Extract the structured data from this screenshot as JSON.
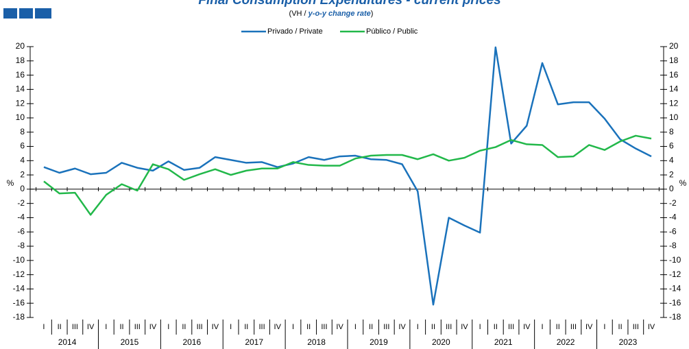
{
  "chart_data": {
    "type": "line",
    "title": "Final Consumption Expenditures - current prices",
    "subtitle_parts": [
      "(VH / ",
      "y-o-y change rate",
      ")"
    ],
    "y_axis_label": "%",
    "y2_axis_label": "%",
    "categories": [
      "I",
      "II",
      "III",
      "IV",
      "I",
      "II",
      "III",
      "IV",
      "I",
      "II",
      "III",
      "IV",
      "I",
      "II",
      "III",
      "IV",
      "I",
      "II",
      "III",
      "IV",
      "I",
      "II",
      "III",
      "IV",
      "I",
      "II",
      "III",
      "IV",
      "I",
      "II",
      "III",
      "IV",
      "I",
      "II",
      "III",
      "IV",
      "I",
      "II",
      "III",
      "IV"
    ],
    "years": [
      "2014",
      "2015",
      "2016",
      "2017",
      "2018",
      "2019",
      "2020",
      "2021",
      "2022",
      "2023"
    ],
    "series": [
      {
        "name": "Privado / Private",
        "color": "#1a72bb",
        "values": [
          3.1,
          2.3,
          2.9,
          2.1,
          2.3,
          3.7,
          3.0,
          2.6,
          3.9,
          2.7,
          3.0,
          4.5,
          4.1,
          3.7,
          3.8,
          3.1,
          3.6,
          4.5,
          4.1,
          4.6,
          4.7,
          4.2,
          4.1,
          3.5,
          -0.3,
          -16.2,
          -4.0,
          -5.1,
          -6.1,
          19.9,
          6.4,
          8.9,
          17.7,
          11.9,
          12.2,
          12.2,
          9.9,
          7.0,
          5.7,
          4.6
        ]
      },
      {
        "name": "Público / Public",
        "color": "#22b84a",
        "values": [
          1.1,
          -0.6,
          -0.5,
          -3.6,
          -0.8,
          0.7,
          -0.2,
          3.5,
          2.8,
          1.3,
          2.1,
          2.8,
          2.0,
          2.6,
          2.9,
          2.9,
          3.8,
          3.4,
          3.3,
          3.3,
          4.3,
          4.7,
          4.8,
          4.8,
          4.2,
          4.9,
          4.0,
          4.4,
          5.4,
          5.9,
          6.9,
          6.3,
          6.2,
          4.5,
          4.6,
          6.2,
          5.5,
          6.7,
          7.5,
          7.1
        ]
      }
    ],
    "ylim": [
      -18,
      20
    ],
    "yticks": [
      -18,
      -16,
      -14,
      -12,
      -10,
      -8,
      -6,
      -4,
      -2,
      0,
      2,
      4,
      6,
      8,
      10,
      12,
      14,
      16,
      18,
      20
    ],
    "y2lim": [
      -18,
      20
    ],
    "y2ticks": [
      -18,
      -16,
      -14,
      -12,
      -10,
      -8,
      -6,
      -4,
      -2,
      0,
      2,
      4,
      6,
      8,
      10,
      12,
      14,
      16,
      18,
      20
    ],
    "grid": false
  }
}
